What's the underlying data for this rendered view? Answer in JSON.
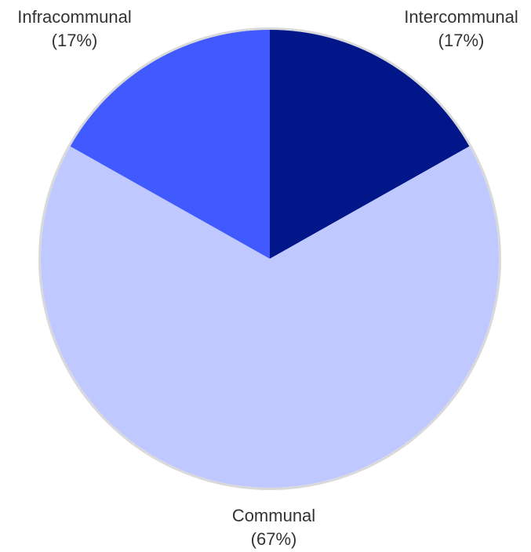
{
  "chart_data": {
    "type": "pie",
    "title": "",
    "legend": "none",
    "start_angle_deg": 0,
    "direction": "clockwise",
    "slices": [
      {
        "label": "Intercommunal",
        "pct_label": "(17%)",
        "value": 17,
        "color": "#001689"
      },
      {
        "label": "Communal",
        "pct_label": "(67%)",
        "value": 67,
        "color": "#c0c9ff"
      },
      {
        "label": "Infracommunal",
        "pct_label": "(17%)",
        "value": 17,
        "color": "#405aff"
      }
    ],
    "outline_color": "#d9d9d9"
  }
}
